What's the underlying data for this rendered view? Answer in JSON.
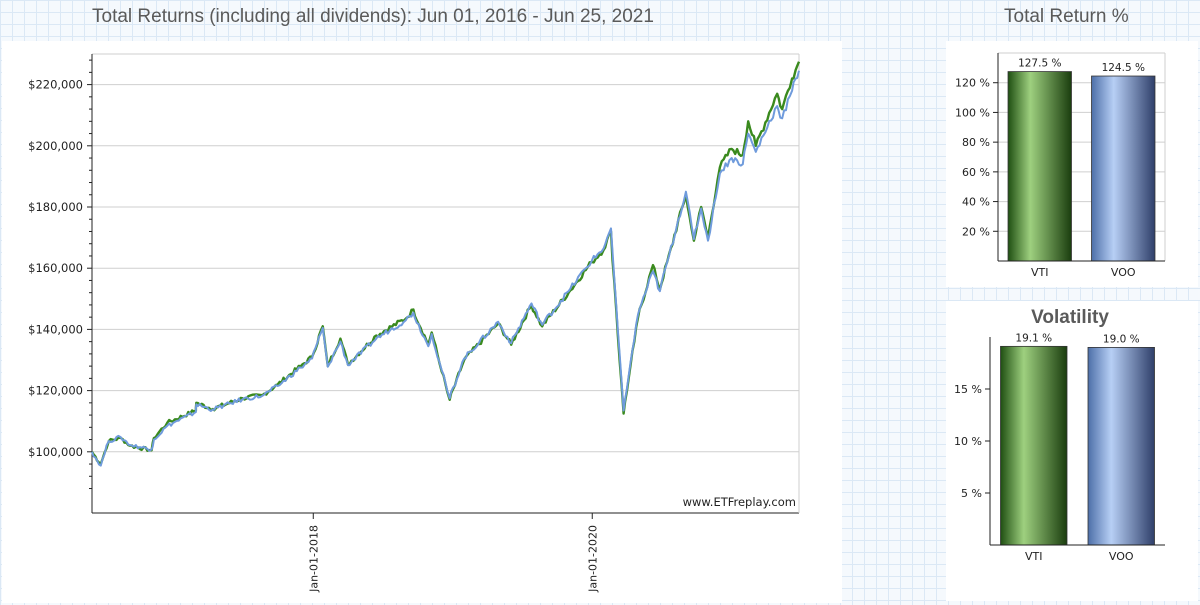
{
  "main": {
    "title": "Total Returns (including all dividends): Jun 01, 2016 - Jun 25, 2021",
    "watermark": "www.ETFreplay.com"
  },
  "colors": {
    "vti": "#3a8a1e",
    "voo": "#6f9bdc",
    "grid": "#cfcfcf",
    "axis": "#222222"
  },
  "chart_data": [
    {
      "type": "line",
      "title": "Total Returns (including all dividends): Jun 01, 2016 - Jun 25, 2021",
      "x_range": [
        "2016-06-01",
        "2021-06-25"
      ],
      "ylim": [
        80000,
        230000
      ],
      "y_ticks": [
        100000,
        120000,
        140000,
        160000,
        180000,
        200000,
        220000
      ],
      "y_tick_labels": [
        "$100,000",
        "$120,000",
        "$140,000",
        "$160,000",
        "$180,000",
        "$200,000",
        "$220,000"
      ],
      "x_ticks": [
        "2018-01-01",
        "2020-01-01"
      ],
      "x_tick_labels": [
        "Jan-01-2018",
        "Jan-01-2020"
      ],
      "grid": true,
      "series": [
        {
          "name": "VTI",
          "color": "#3a8a1e",
          "points": [
            [
              "2016-06-01",
              100000
            ],
            [
              "2016-06-24",
              96000
            ],
            [
              "2016-07-15",
              103500
            ],
            [
              "2016-08-15",
              104500
            ],
            [
              "2016-09-09",
              102000
            ],
            [
              "2016-11-04",
              100500
            ],
            [
              "2016-11-10",
              104500
            ],
            [
              "2016-12-15",
              109500
            ],
            [
              "2017-02-28",
              113500
            ],
            [
              "2017-03-01",
              116000
            ],
            [
              "2017-04-13",
              114000
            ],
            [
              "2017-06-30",
              117500
            ],
            [
              "2017-08-21",
              118500
            ],
            [
              "2017-09-30",
              122000
            ],
            [
              "2017-11-30",
              128000
            ],
            [
              "2017-12-29",
              131000
            ],
            [
              "2018-01-26",
              141000
            ],
            [
              "2018-02-08",
              128000
            ],
            [
              "2018-03-13",
              137000
            ],
            [
              "2018-04-02",
              128500
            ],
            [
              "2018-06-15",
              138000
            ],
            [
              "2018-08-31",
              143500
            ],
            [
              "2018-09-20",
              146500
            ],
            [
              "2018-10-29",
              135000
            ],
            [
              "2018-11-07",
              139000
            ],
            [
              "2018-12-24",
              117000
            ],
            [
              "2019-01-31",
              130000
            ],
            [
              "2019-04-30",
              142000
            ],
            [
              "2019-06-03",
              135000
            ],
            [
              "2019-07-26",
              148000
            ],
            [
              "2019-08-23",
              141000
            ],
            [
              "2019-10-31",
              152000
            ],
            [
              "2019-12-31",
              162000
            ],
            [
              "2020-01-31",
              166000
            ],
            [
              "2020-02-19",
              172000
            ],
            [
              "2020-03-23",
              112500
            ],
            [
              "2020-04-30",
              144000
            ],
            [
              "2020-06-08",
              161000
            ],
            [
              "2020-06-26",
              153000
            ],
            [
              "2020-09-02",
              184000
            ],
            [
              "2020-09-23",
              169000
            ],
            [
              "2020-10-12",
              180000
            ],
            [
              "2020-10-30",
              170000
            ],
            [
              "2020-11-30",
              193000
            ],
            [
              "2020-12-31",
              199000
            ],
            [
              "2021-01-29",
              197000
            ],
            [
              "2021-02-12",
              208000
            ],
            [
              "2021-03-04",
              200000
            ],
            [
              "2021-04-29",
              217000
            ],
            [
              "2021-05-12",
              212000
            ],
            [
              "2021-06-07",
              222000
            ],
            [
              "2021-06-25",
              227500
            ]
          ]
        },
        {
          "name": "VOO",
          "color": "#6f9bdc",
          "points": [
            [
              "2016-06-01",
              100000
            ],
            [
              "2016-06-24",
              95500
            ],
            [
              "2016-07-15",
              103500
            ],
            [
              "2016-08-15",
              104800
            ],
            [
              "2016-09-09",
              102200
            ],
            [
              "2016-11-04",
              100800
            ],
            [
              "2016-11-10",
              104000
            ],
            [
              "2016-12-15",
              108500
            ],
            [
              "2017-02-28",
              113000
            ],
            [
              "2017-03-01",
              115500
            ],
            [
              "2017-04-13",
              113800
            ],
            [
              "2017-06-30",
              117200
            ],
            [
              "2017-08-21",
              118300
            ],
            [
              "2017-09-30",
              121500
            ],
            [
              "2017-11-30",
              127500
            ],
            [
              "2017-12-29",
              130500
            ],
            [
              "2018-01-26",
              140500
            ],
            [
              "2018-02-08",
              127800
            ],
            [
              "2018-03-13",
              136000
            ],
            [
              "2018-04-02",
              128300
            ],
            [
              "2018-06-15",
              137000
            ],
            [
              "2018-08-31",
              143000
            ],
            [
              "2018-09-20",
              145500
            ],
            [
              "2018-10-29",
              134500
            ],
            [
              "2018-11-07",
              138500
            ],
            [
              "2018-12-24",
              117500
            ],
            [
              "2019-01-31",
              130500
            ],
            [
              "2019-04-30",
              142500
            ],
            [
              "2019-06-03",
              135500
            ],
            [
              "2019-07-26",
              148500
            ],
            [
              "2019-08-23",
              141500
            ],
            [
              "2019-10-31",
              152500
            ],
            [
              "2019-12-31",
              162500
            ],
            [
              "2020-01-31",
              166500
            ],
            [
              "2020-02-19",
              173000
            ],
            [
              "2020-03-23",
              113500
            ],
            [
              "2020-04-30",
              145000
            ],
            [
              "2020-06-08",
              159000
            ],
            [
              "2020-06-26",
              152500
            ],
            [
              "2020-09-02",
              185000
            ],
            [
              "2020-09-23",
              169500
            ],
            [
              "2020-10-12",
              179500
            ],
            [
              "2020-10-30",
              169000
            ],
            [
              "2020-11-30",
              191000
            ],
            [
              "2020-12-31",
              196000
            ],
            [
              "2021-01-29",
              194000
            ],
            [
              "2021-02-12",
              204000
            ],
            [
              "2021-03-04",
              198000
            ],
            [
              "2021-04-29",
              213000
            ],
            [
              "2021-05-12",
              209000
            ],
            [
              "2021-06-07",
              218000
            ],
            [
              "2021-06-25",
              224500
            ]
          ]
        }
      ]
    },
    {
      "type": "bar",
      "title": "Total Return %",
      "categories": [
        "VTI",
        "VOO"
      ],
      "values": [
        127.5,
        124.5
      ],
      "value_labels": [
        "127.5 %",
        "124.5 %"
      ],
      "ylim": [
        0,
        140
      ],
      "y_ticks": [
        20,
        40,
        60,
        80,
        100,
        120
      ],
      "y_tick_labels": [
        "20 %",
        "40 %",
        "60 %",
        "80 %",
        "100 %",
        "120 %"
      ],
      "grid": true,
      "colors": [
        "#3a8a1e",
        "#6f9bdc"
      ]
    },
    {
      "type": "bar",
      "title": "Volatility",
      "categories": [
        "VTI",
        "VOO"
      ],
      "values": [
        19.1,
        19.0
      ],
      "value_labels": [
        "19.1 %",
        "19.0 %"
      ],
      "ylim": [
        0,
        20
      ],
      "y_ticks": [
        5,
        10,
        15
      ],
      "y_tick_labels": [
        "5 %",
        "10 %",
        "15 %"
      ],
      "grid": false,
      "colors": [
        "#3a8a1e",
        "#6f9bdc"
      ]
    }
  ]
}
